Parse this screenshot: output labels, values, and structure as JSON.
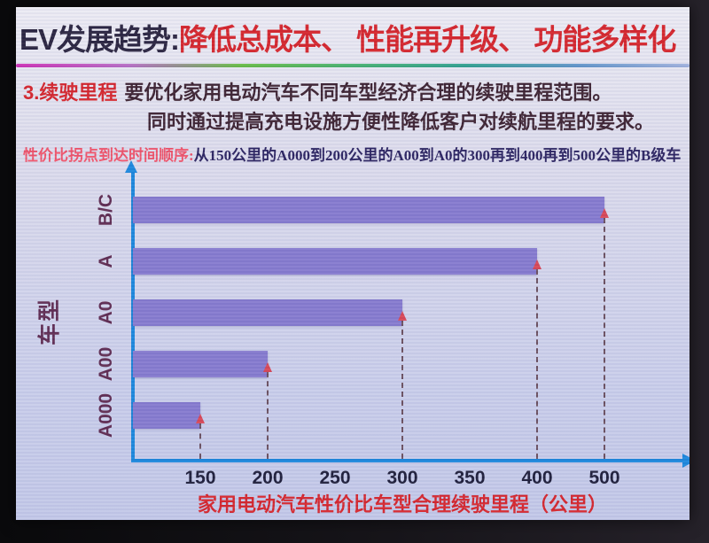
{
  "slide": {
    "title_prefix": "EV发展趋势:",
    "title_highlight": "降低总成本、 性能再升级、 功能多样化",
    "section_label": "3.续驶里程",
    "section_line1": "要优化家用电动汽车不同车型经济合理的续驶里程范围。",
    "section_line2": "同时通过提高充电设施方便性降低客户对续航里程的要求。",
    "subtitle_label": "性价比拐点到达时间顺序:",
    "subtitle_text": "从150公里的A000到200公里的A00到A0的300再到400再到500公里的B级车"
  },
  "chart_data": {
    "type": "bar",
    "orientation": "horizontal",
    "title": "",
    "categories": [
      "A000",
      "A00",
      "A0",
      "A",
      "B/C"
    ],
    "values": [
      150,
      200,
      300,
      400,
      500
    ],
    "row_order_top_to_bottom": [
      "B/C",
      "A",
      "A0",
      "A00",
      "A000"
    ],
    "ylabel": "车型",
    "xlabel": "家用电动汽车性价比车型合理续驶里程（公里）",
    "x_ticks": [
      "150",
      "200",
      "250",
      "300",
      "350",
      "400",
      "500"
    ],
    "axis_note": "ticks printed at even spacing; 450 is skipped between 400 and 500",
    "legend": "none",
    "grid": "off",
    "annotations": "dashed leader line with red upward arrow at the end of each bar",
    "colors": {
      "bar": "#8579ce",
      "axis": "#1a86dc",
      "leader_line": "#6a4f5e",
      "leader_arrow": "#d84555",
      "tick_label": "#1c1c38",
      "category_label": "#5e2a50",
      "xlabel_color": "#d5232a"
    }
  },
  "colors": {
    "rainbow": [
      "#cc2fb4",
      "#b66cc4",
      "#66bb44",
      "#45b06e",
      "#2f9f8e",
      "#5f93c8",
      "#9fb0dc"
    ]
  }
}
